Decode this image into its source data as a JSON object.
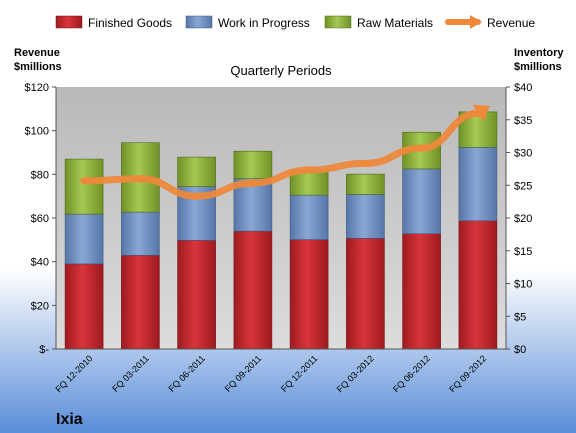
{
  "chart_data": {
    "type": "bar",
    "title": "Quarterly Periods",
    "categories": [
      "FQ 12-2010",
      "FQ 03-2011",
      "FQ 06-2011",
      "FQ 09-2011",
      "FQ 12-2011",
      "FQ 03-2012",
      "FQ 06-2012",
      "FQ 09-2012"
    ],
    "stacked": true,
    "series": [
      {
        "name": "Finished Goods",
        "axis": "right",
        "color": "#c0272d",
        "values": [
          13.0,
          14.3,
          16.6,
          18.0,
          16.7,
          16.9,
          17.6,
          19.6
        ]
      },
      {
        "name": "Work in Progress",
        "axis": "right",
        "color": "#6f8fbf",
        "values": [
          7.6,
          6.6,
          8.2,
          8.0,
          6.8,
          6.7,
          9.9,
          11.2
        ]
      },
      {
        "name": "Raw Materials",
        "axis": "right",
        "color": "#8fb33e",
        "values": [
          8.4,
          10.6,
          4.5,
          4.2,
          3.8,
          3.1,
          5.6,
          5.4
        ]
      }
    ],
    "line_series": {
      "name": "Revenue",
      "axis": "left",
      "color": "#f0883a",
      "values": [
        77,
        78,
        70,
        76,
        82,
        85,
        92,
        108
      ]
    },
    "y_left": {
      "label_line1": "Revenue",
      "label_line2": "$millions",
      "ylim": [
        0,
        120
      ],
      "ticks": [
        0,
        20,
        40,
        60,
        80,
        100,
        120
      ],
      "tick_labels": [
        "$-",
        "$20",
        "$40",
        "$60",
        "$80",
        "$100",
        "$120"
      ]
    },
    "y_right": {
      "label_line1": "Inventory",
      "label_line2": "$millions",
      "ylim": [
        0,
        40
      ],
      "ticks": [
        0,
        5,
        10,
        15,
        20,
        25,
        30,
        35,
        40
      ],
      "tick_labels": [
        "$0",
        "$5",
        "$10",
        "$15",
        "$20",
        "$25",
        "$30",
        "$35",
        "$40"
      ]
    },
    "legend_position": "top",
    "grid": false,
    "colors": {
      "plot_bg": "#c8c8c8",
      "page_top": "#ffffff",
      "page_bottom": "#5a8ed8"
    }
  },
  "brand": "Ixia"
}
